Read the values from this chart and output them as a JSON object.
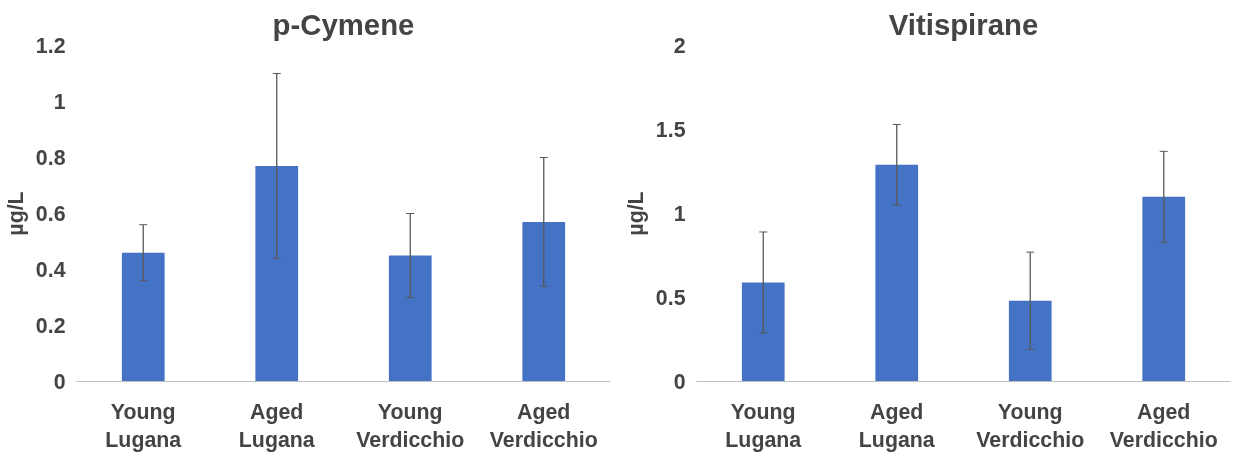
{
  "chart_data": [
    {
      "type": "bar",
      "title": "p-Cymene",
      "ylabel": "µg/L",
      "categories": [
        "Young Lugana",
        "Aged Lugana",
        "Young Verdicchio",
        "Aged Verdicchio"
      ],
      "values": [
        0.46,
        0.77,
        0.45,
        0.57
      ],
      "errors": [
        0.1,
        0.33,
        0.15,
        0.23
      ],
      "color": "#4472c4",
      "ylim": [
        0,
        1.2
      ],
      "yticks": [
        0,
        0.2,
        0.4,
        0.6,
        0.8,
        1,
        1.2
      ],
      "grid": false
    },
    {
      "type": "bar",
      "title": "Vitispirane",
      "ylabel": "µg/L",
      "categories": [
        "Young Lugana",
        "Aged Lugana",
        "Young Verdicchio",
        "Aged Verdicchio"
      ],
      "values": [
        0.59,
        1.29,
        0.48,
        1.1
      ],
      "errors": [
        0.3,
        0.24,
        0.29,
        0.27
      ],
      "color": "#4472c4",
      "ylim": [
        0,
        2
      ],
      "yticks": [
        0,
        0.5,
        1,
        1.5,
        2
      ],
      "grid": false
    }
  ]
}
